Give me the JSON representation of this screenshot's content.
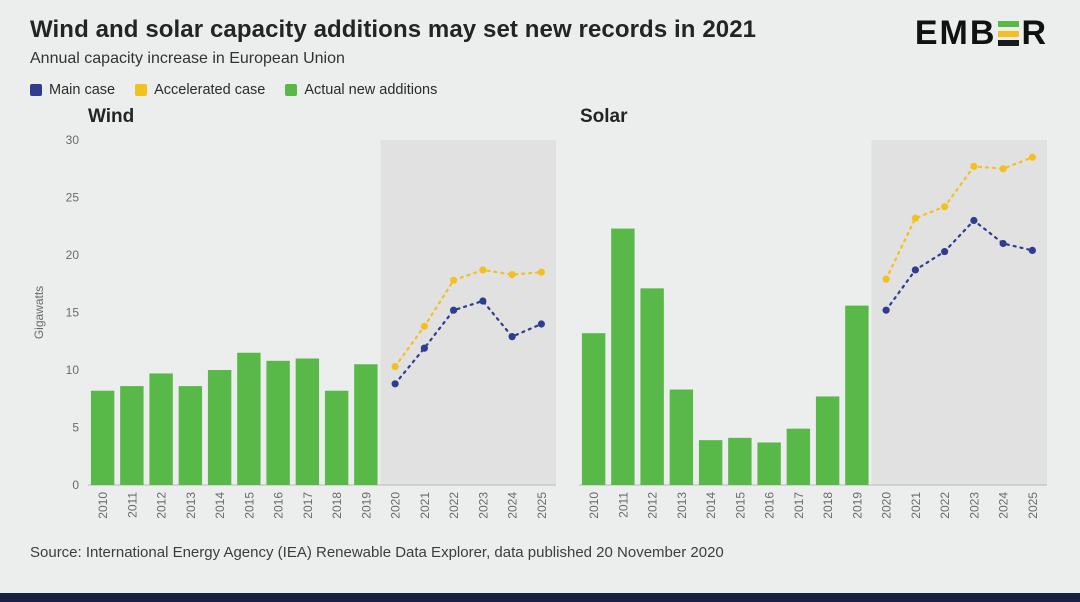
{
  "header": {
    "title": "Wind and solar capacity additions may set new records in 2021",
    "subtitle": "Annual capacity increase in European Union"
  },
  "logo": {
    "prefix": "EMB",
    "suffix": "R",
    "bar_colors": [
      "#58b848",
      "#f3c021",
      "#1a1a1a"
    ]
  },
  "legend": [
    {
      "label": "Main case",
      "color": "#303c8f"
    },
    {
      "label": "Accelerated case",
      "color": "#f3c021"
    },
    {
      "label": "Actual new additions",
      "color": "#58b848"
    }
  ],
  "source": "Source: International Energy Agency (IEA) Renewable Data Explorer, data published 20 November 2020",
  "colors": {
    "page_background": "#eceeed",
    "forecast_background": "#e0e1e0",
    "bottom_bar": "#1a2040",
    "axis_line": "#b8b8b8"
  },
  "chart_data": [
    {
      "type": "bar",
      "title": "Wind",
      "ylabel": "Gigawatts",
      "ylim": [
        0,
        30
      ],
      "yticks": [
        0,
        5,
        10,
        15,
        20,
        25,
        30
      ],
      "categories": [
        "2010",
        "2011",
        "2012",
        "2013",
        "2014",
        "2015",
        "2016",
        "2017",
        "2018",
        "2019",
        "2020",
        "2021",
        "2022",
        "2023",
        "2024",
        "2025"
      ],
      "forecast_start": "2020",
      "layout": {
        "show_y_labels": true,
        "margin_left": 60,
        "margin_right": 1,
        "legend_position": "top",
        "grid": false
      },
      "series": [
        {
          "name": "Actual new additions",
          "type": "bar",
          "color": "#58b848",
          "values": [
            8.2,
            8.6,
            9.7,
            8.6,
            10.0,
            11.5,
            10.8,
            11.0,
            8.2,
            10.5,
            null,
            null,
            null,
            null,
            null,
            null
          ]
        },
        {
          "name": "Main case",
          "type": "line",
          "color": "#303c8f",
          "values": [
            null,
            null,
            null,
            null,
            null,
            null,
            null,
            null,
            null,
            null,
            8.8,
            11.9,
            15.2,
            16.0,
            12.9,
            14.0
          ]
        },
        {
          "name": "Accelerated case",
          "type": "line",
          "color": "#f3c021",
          "values": [
            null,
            null,
            null,
            null,
            null,
            null,
            null,
            null,
            null,
            null,
            10.3,
            13.8,
            17.8,
            18.7,
            18.3,
            18.5
          ]
        }
      ]
    },
    {
      "type": "bar",
      "title": "Solar",
      "ylabel": "Gigawatts",
      "ylim": [
        0,
        30
      ],
      "yticks": [
        0,
        5,
        10,
        15,
        20,
        25,
        30
      ],
      "categories": [
        "2010",
        "2011",
        "2012",
        "2013",
        "2014",
        "2015",
        "2016",
        "2017",
        "2018",
        "2019",
        "2020",
        "2021",
        "2022",
        "2023",
        "2024",
        "2025"
      ],
      "forecast_start": "2020",
      "layout": {
        "show_y_labels": false,
        "margin_left": 1,
        "margin_right": 1,
        "legend_position": "top",
        "grid": false
      },
      "series": [
        {
          "name": "Actual new additions",
          "type": "bar",
          "color": "#58b848",
          "values": [
            13.2,
            22.3,
            17.1,
            8.3,
            3.9,
            4.1,
            3.7,
            4.9,
            7.7,
            15.6,
            null,
            null,
            null,
            null,
            null,
            null
          ]
        },
        {
          "name": "Main case",
          "type": "line",
          "color": "#303c8f",
          "values": [
            null,
            null,
            null,
            null,
            null,
            null,
            null,
            null,
            null,
            null,
            15.2,
            18.7,
            20.3,
            23.0,
            21.0,
            20.4
          ]
        },
        {
          "name": "Accelerated case",
          "type": "line",
          "color": "#f3c021",
          "values": [
            null,
            null,
            null,
            null,
            null,
            null,
            null,
            null,
            null,
            null,
            17.9,
            23.2,
            24.2,
            27.7,
            27.5,
            28.5
          ]
        }
      ]
    }
  ]
}
